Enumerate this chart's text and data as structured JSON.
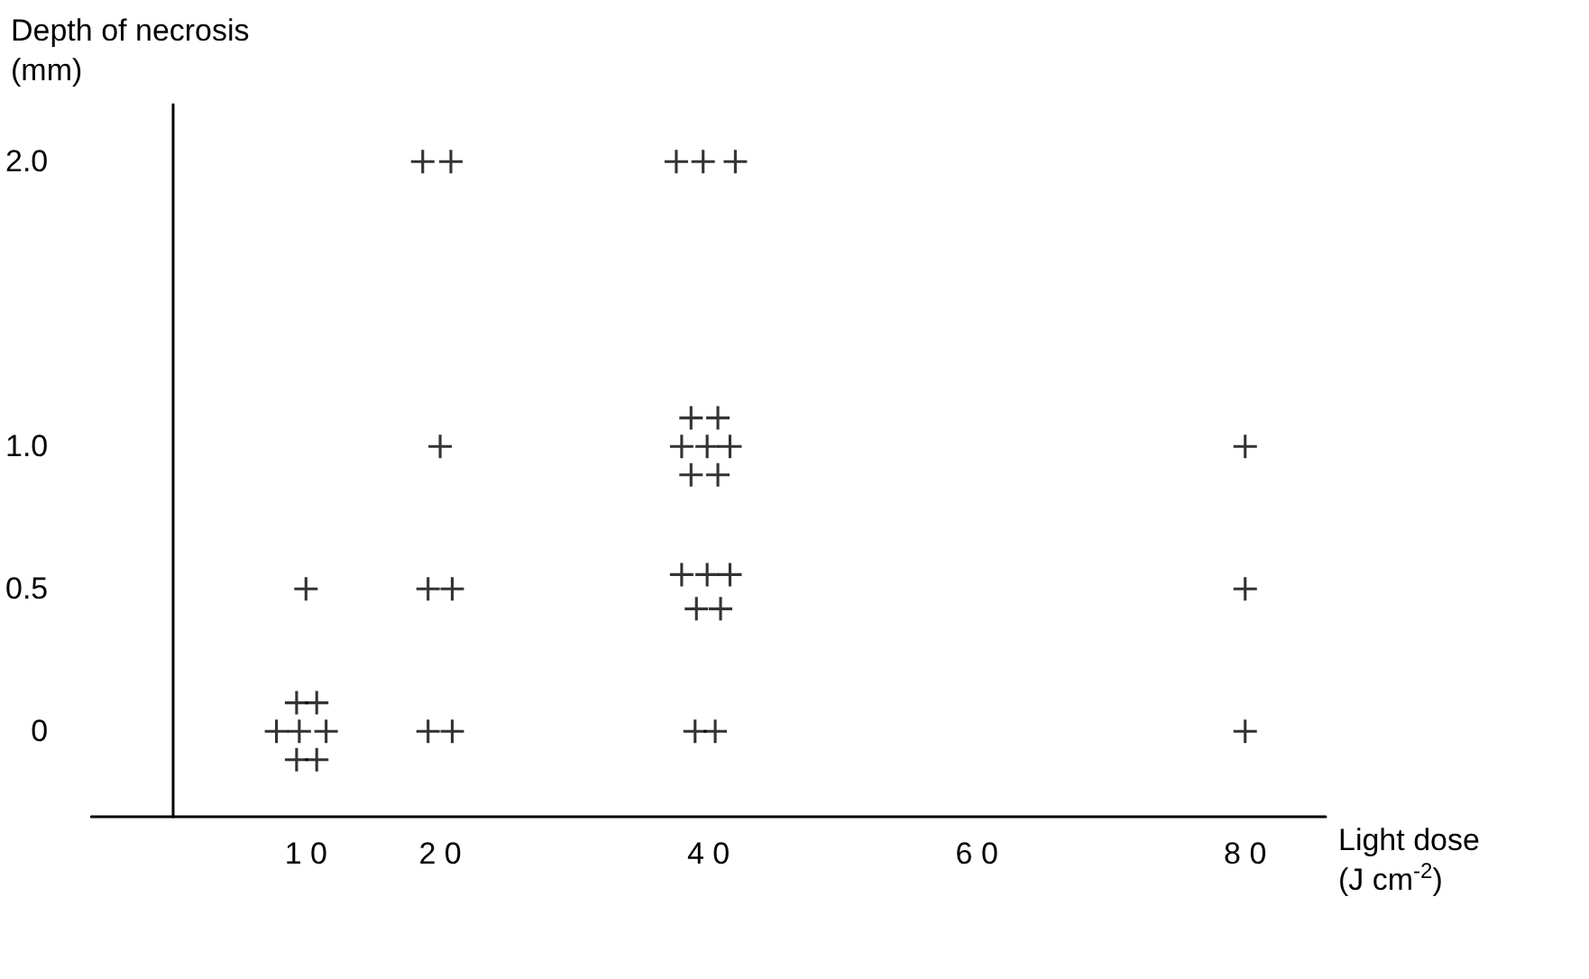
{
  "chart_data": {
    "type": "scatter",
    "xlabel": "Light dose\n(J cm$^{-2}$)",
    "ylabel": "Depth of necrosis\n(mm)",
    "marker": "cross",
    "xlim": [
      -6,
      86
    ],
    "ylim": [
      -0.3,
      2.2
    ],
    "xticks": [
      10,
      20,
      40,
      60,
      80
    ],
    "yticks": [
      0,
      0.5,
      {
        "value": 1,
        "label": "1.0"
      },
      {
        "value": 2,
        "label": "2.0"
      }
    ],
    "series": [
      {
        "color": "#000000",
        "x": [
          9.3,
          10.8,
          7.8,
          9.5,
          11.5,
          9.3,
          10.8,
          10,
          19.1,
          20.9,
          19.1,
          20.9,
          20,
          18.7,
          20.8,
          39,
          40.5,
          38.7,
          40.7,
          38,
          39.9,
          41.6,
          38.7,
          40.7,
          38,
          39.9,
          41.6,
          39.1,
          40.9,
          37.6,
          39.6,
          42,
          80,
          80,
          80
        ],
        "values": [
          0.1,
          0.1,
          0,
          0,
          0,
          -0.1,
          -0.1,
          0.5,
          0,
          0,
          0.5,
          0.5,
          1,
          2,
          2,
          0,
          0,
          1.1,
          1.1,
          1,
          1,
          1,
          0.9,
          0.9,
          0.55,
          0.55,
          0.55,
          0.43,
          0.43,
          2,
          2,
          2,
          0,
          0.5,
          1
        ]
      }
    ]
  }
}
